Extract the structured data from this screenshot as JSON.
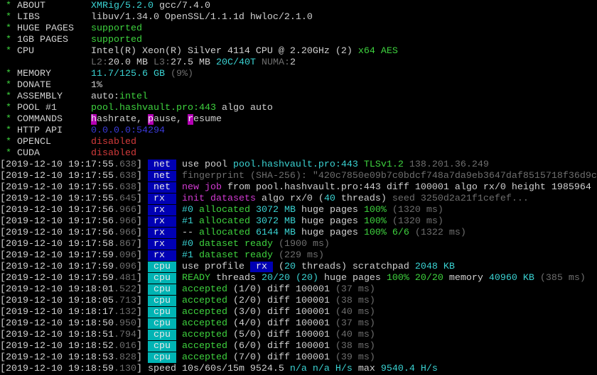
{
  "colors": {
    "net": "#0000b4",
    "rx": "#0000b4",
    "cpu": "#00b4b4",
    "green": "#3ed23e",
    "cyan": "#3ad2d2",
    "magenta": "#d23ad2",
    "red": "#d23a3a",
    "dim": "#6e6e6e"
  },
  "info": [
    {
      "label": "ABOUT",
      "value": [
        [
          "XMRig/5.2.0",
          "cyan"
        ],
        [
          " gcc/7.4.0",
          "white"
        ]
      ]
    },
    {
      "label": "LIBS",
      "value": [
        [
          "libuv/1.34.0 OpenSSL/1.1.1d hwloc/2.1.0",
          "white"
        ]
      ]
    },
    {
      "label": "HUGE PAGES",
      "value": [
        [
          "supported",
          "green"
        ]
      ]
    },
    {
      "label": "1GB PAGES",
      "value": [
        [
          "supported",
          "green"
        ]
      ]
    },
    {
      "label": "CPU",
      "value": [
        [
          "Intel(R) Xeon(R) Silver 4114 CPU @ 2.20GHz (2)",
          "white"
        ],
        [
          " x64 AES",
          "green"
        ]
      ]
    },
    {
      "label": "",
      "value": [
        [
          "L2:",
          "dim"
        ],
        [
          "20.0 MB",
          "white"
        ],
        [
          " L3:",
          "dim"
        ],
        [
          "27.5 MB",
          "white"
        ],
        [
          " 20C/40T",
          "cyan"
        ],
        [
          " NUMA:",
          "dim"
        ],
        [
          "2",
          "white"
        ]
      ]
    },
    {
      "label": "MEMORY",
      "value": [
        [
          "11.7/125.6 GB",
          "cyan"
        ],
        [
          " (9%)",
          "dim"
        ]
      ]
    },
    {
      "label": "DONATE",
      "value": [
        [
          "1%",
          "white"
        ]
      ]
    },
    {
      "label": "ASSEMBLY",
      "value": [
        [
          "auto:",
          "white"
        ],
        [
          "intel",
          "green"
        ]
      ]
    },
    {
      "label": "POOL #1",
      "value": [
        [
          "pool.hashvault.pro:443",
          "green"
        ],
        [
          " algo auto",
          "white"
        ]
      ]
    },
    {
      "label": "COMMANDS",
      "value": [
        [
          "h",
          "hl"
        ],
        [
          "ashrate, ",
          "white"
        ],
        [
          "p",
          "hl"
        ],
        [
          "ause, ",
          "white"
        ],
        [
          "r",
          "hl"
        ],
        [
          "esume",
          "white"
        ]
      ]
    },
    {
      "label": "HTTP API",
      "value": [
        [
          "0.0.0.0:54294",
          "blue"
        ]
      ]
    },
    {
      "label": "OPENCL",
      "value": [
        [
          "disabled",
          "red"
        ]
      ]
    },
    {
      "label": "CUDA",
      "value": [
        [
          "disabled",
          "red"
        ]
      ]
    }
  ],
  "log": [
    {
      "ts": "2019-12-10 19:17:55",
      "ms": ".638",
      "tag": "net",
      "msg": [
        [
          "use pool ",
          "white"
        ],
        [
          "pool.hashvault.pro:443 ",
          "cyan"
        ],
        [
          "TLSv1.2 ",
          "green"
        ],
        [
          "138.201.36.249",
          "dim"
        ]
      ]
    },
    {
      "ts": "2019-12-10 19:17:55",
      "ms": ".638",
      "tag": "net",
      "msg": [
        [
          "fingerprint (SHA-256): \"420c7850e09b7c0bdcf748a7da9eb3647daf8515718f36d9c",
          "dim"
        ]
      ]
    },
    {
      "ts": "2019-12-10 19:17:55",
      "ms": ".638",
      "tag": "net",
      "msg": [
        [
          "new job",
          "magenta"
        ],
        [
          " from pool.hashvault.pro:443 diff 100001 algo rx/0 height 1985964",
          "white"
        ]
      ]
    },
    {
      "ts": "2019-12-10 19:17:55",
      "ms": ".645",
      "tag": "rx",
      "msg": [
        [
          "init datasets",
          "magenta"
        ],
        [
          " algo rx/0 (",
          "white"
        ],
        [
          "40",
          "cyan"
        ],
        [
          " threads)",
          "white"
        ],
        [
          " seed 3250d2a21f1cefef...",
          "dim"
        ]
      ]
    },
    {
      "ts": "2019-12-10 19:17:56",
      "ms": ".966",
      "tag": "rx",
      "msg": [
        [
          "#0",
          "cyan"
        ],
        [
          " allocated",
          "green"
        ],
        [
          " 3072 MB",
          "cyan"
        ],
        [
          " huge pages ",
          "white"
        ],
        [
          "100%",
          "green"
        ],
        [
          " (1320 ms)",
          "dim"
        ]
      ]
    },
    {
      "ts": "2019-12-10 19:17:56",
      "ms": ".966",
      "tag": "rx",
      "msg": [
        [
          "#1",
          "cyan"
        ],
        [
          " allocated",
          "green"
        ],
        [
          " 3072 MB",
          "cyan"
        ],
        [
          " huge pages ",
          "white"
        ],
        [
          "100%",
          "green"
        ],
        [
          " (1320 ms)",
          "dim"
        ]
      ]
    },
    {
      "ts": "2019-12-10 19:17:56",
      "ms": ".966",
      "tag": "rx",
      "msg": [
        [
          "--",
          "white"
        ],
        [
          " allocated",
          "green"
        ],
        [
          " 6144 MB",
          "cyan"
        ],
        [
          " huge pages ",
          "white"
        ],
        [
          "100% 6/6",
          "green"
        ],
        [
          " (1322 ms)",
          "dim"
        ]
      ]
    },
    {
      "ts": "2019-12-10 19:17:58",
      "ms": ".867",
      "tag": "rx",
      "msg": [
        [
          "#0",
          "cyan"
        ],
        [
          " dataset ready",
          "green"
        ],
        [
          " (1900 ms)",
          "dim"
        ]
      ]
    },
    {
      "ts": "2019-12-10 19:17:59",
      "ms": ".096",
      "tag": "rx",
      "msg": [
        [
          "#1",
          "cyan"
        ],
        [
          " dataset ready",
          "green"
        ],
        [
          " (229 ms)",
          "dim"
        ]
      ]
    },
    {
      "ts": "2019-12-10 19:17:59",
      "ms": ".096",
      "tag": "cpu",
      "msg": [
        [
          "use profile ",
          "white"
        ],
        [
          " rx ",
          "inl-rx"
        ],
        [
          " (",
          "white"
        ],
        [
          "20",
          "cyan"
        ],
        [
          " threads) scratchpad ",
          "white"
        ],
        [
          "2048 KB",
          "cyan"
        ]
      ]
    },
    {
      "ts": "2019-12-10 19:17:59",
      "ms": ".481",
      "tag": "cpu",
      "msg": [
        [
          "READY",
          "green"
        ],
        [
          " threads ",
          "white"
        ],
        [
          "20/20",
          "cyan"
        ],
        [
          " (20)",
          "cyan"
        ],
        [
          " huge pages ",
          "white"
        ],
        [
          "100% 20/20",
          "green"
        ],
        [
          " memory ",
          "white"
        ],
        [
          "40960 KB",
          "cyan"
        ],
        [
          " (385 ms)",
          "dim"
        ]
      ]
    },
    {
      "ts": "2019-12-10 19:18:01",
      "ms": ".522",
      "tag": "cpu",
      "msg": [
        [
          "accepted",
          "green"
        ],
        [
          " (1/0) diff 100001",
          "white"
        ],
        [
          " (37 ms)",
          "dim"
        ]
      ]
    },
    {
      "ts": "2019-12-10 19:18:05",
      "ms": ".713",
      "tag": "cpu",
      "msg": [
        [
          "accepted",
          "green"
        ],
        [
          " (2/0) diff 100001",
          "white"
        ],
        [
          " (38 ms)",
          "dim"
        ]
      ]
    },
    {
      "ts": "2019-12-10 19:18:17",
      "ms": ".132",
      "tag": "cpu",
      "msg": [
        [
          "accepted",
          "green"
        ],
        [
          " (3/0) diff 100001",
          "white"
        ],
        [
          " (40 ms)",
          "dim"
        ]
      ]
    },
    {
      "ts": "2019-12-10 19:18:50",
      "ms": ".950",
      "tag": "cpu",
      "msg": [
        [
          "accepted",
          "green"
        ],
        [
          " (4/0) diff 100001",
          "white"
        ],
        [
          " (37 ms)",
          "dim"
        ]
      ]
    },
    {
      "ts": "2019-12-10 19:18:51",
      "ms": ".794",
      "tag": "cpu",
      "msg": [
        [
          "accepted",
          "green"
        ],
        [
          " (5/0) diff 100001",
          "white"
        ],
        [
          " (40 ms)",
          "dim"
        ]
      ]
    },
    {
      "ts": "2019-12-10 19:18:52",
      "ms": ".016",
      "tag": "cpu",
      "msg": [
        [
          "accepted",
          "green"
        ],
        [
          " (6/0) diff 100001",
          "white"
        ],
        [
          " (38 ms)",
          "dim"
        ]
      ]
    },
    {
      "ts": "2019-12-10 19:18:53",
      "ms": ".828",
      "tag": "cpu",
      "msg": [
        [
          "accepted",
          "green"
        ],
        [
          " (7/0) diff 100001",
          "white"
        ],
        [
          " (39 ms)",
          "dim"
        ]
      ]
    },
    {
      "ts": "2019-12-10 19:18:59",
      "ms": ".130",
      "tag": "",
      "msg": [
        [
          "speed 10s/60s/15m 9524.5",
          "white"
        ],
        [
          " n/a n/a H/s",
          "cyan"
        ],
        [
          " max ",
          "white"
        ],
        [
          "9540.4 H/s",
          "cyan"
        ]
      ]
    }
  ]
}
